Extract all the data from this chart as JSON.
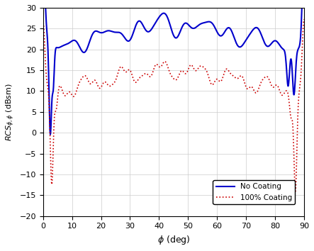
{
  "title": "",
  "xlabel": "\\phi (deg)",
  "xlim": [
    0,
    90
  ],
  "ylim": [
    -20,
    30
  ],
  "yticks": [
    -20,
    -15,
    -10,
    -5,
    0,
    5,
    10,
    15,
    20,
    25,
    30
  ],
  "xticks": [
    0,
    10,
    20,
    30,
    40,
    50,
    60,
    70,
    80,
    90
  ],
  "blue_color": "#0000cc",
  "red_color": "#cc0000",
  "legend_labels": [
    "No Coating",
    "100% Coating"
  ],
  "background_color": "#ffffff"
}
